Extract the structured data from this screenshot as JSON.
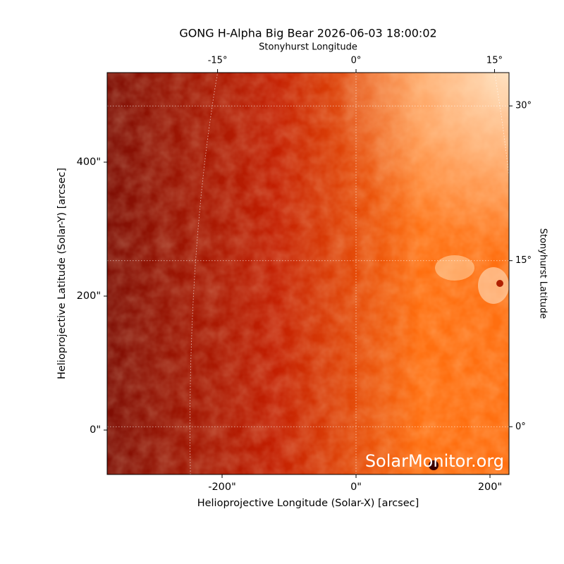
{
  "chart_data": {
    "type": "image",
    "title": "GONG H-Alpha Big Bear 2026-06-03 18:00:02",
    "xlabel": "Helioprojective Longitude (Solar-X) [arcsec]",
    "ylabel": "Helioprojective Latitude (Solar-Y) [arcsec]",
    "x2label": "Stonyhurst Longitude",
    "y2label": "Stonyhurst Latitude",
    "xlim": [
      -371.6,
      228.4
    ],
    "ylim": [
      -66.3,
      533.7
    ],
    "xticks": [
      {
        "value": -200,
        "label": "-200\""
      },
      {
        "value": 0,
        "label": "0\""
      },
      {
        "value": 200,
        "label": "200\""
      }
    ],
    "yticks": [
      {
        "value": 0,
        "label": "0\""
      },
      {
        "value": 200,
        "label": "200\""
      },
      {
        "value": 400,
        "label": "400\""
      }
    ],
    "x2ticks": [
      {
        "value": -15,
        "label": "-15°"
      },
      {
        "value": 0,
        "label": "0°"
      },
      {
        "value": 15,
        "label": "15°"
      }
    ],
    "y2ticks": [
      {
        "value": 0,
        "label": "0°"
      },
      {
        "value": 15,
        "label": "15°"
      },
      {
        "value": 30,
        "label": "30°"
      }
    ],
    "grid": true,
    "watermark": "SolarMonitor.org",
    "colormap": [
      "#7e0e04",
      "#c41f01",
      "#ff6f10",
      "#ffe2c2"
    ]
  }
}
